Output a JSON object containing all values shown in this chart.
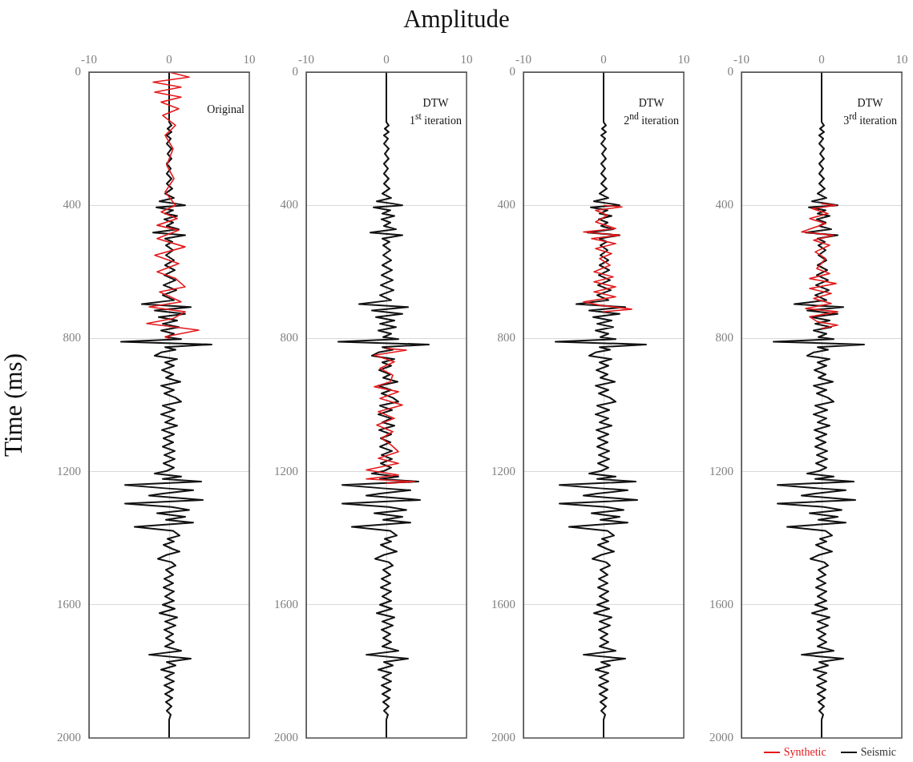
{
  "chart_data": [
    {
      "type": "line",
      "ylabel": "Time (ms)",
      "annotations": [
        "Original"
      ],
      "xlim": [
        -10,
        10
      ],
      "xticks": [
        -10,
        0,
        10
      ],
      "ylim": [
        2000,
        0
      ],
      "yticks": [
        0,
        400,
        800,
        1200,
        1600,
        2000
      ],
      "grid": true,
      "series": [
        {
          "color": "#e3191c",
          "x": [
            0,
            2.5,
            -2,
            1.5,
            -1.8,
            1.5,
            -1,
            1.2,
            -0.8,
            0.8,
            -0.5,
            0.5,
            -0.3,
            0.6,
            -0.5,
            0.8,
            -1,
            1,
            -1.5,
            1.2,
            -1.5,
            2,
            -1.8,
            1.2,
            -1.5,
            0.8,
            2,
            -1.2,
            1.5,
            -2.5,
            2,
            0.5,
            -2.8,
            3.7,
            -0.5,
            0
          ],
          "values": [
            0,
            15,
            30,
            45,
            60,
            75,
            90,
            110,
            130,
            160,
            190,
            230,
            280,
            320,
            360,
            400,
            420,
            440,
            460,
            475,
            500,
            525,
            550,
            575,
            600,
            620,
            645,
            660,
            690,
            705,
            720,
            740,
            755,
            775,
            795,
            800
          ]
        },
        {
          "color": "#111111",
          "x": [
            0,
            0,
            0.3,
            -0.2,
            0.3,
            -0.3,
            0.2,
            -0.3,
            0.3,
            -0.2,
            0.3,
            -0.3,
            0.2,
            -0.3,
            0.3,
            -0.3,
            0.4,
            -0.5,
            0.6,
            -1.2,
            0.8,
            2,
            -1.6,
            0.5,
            -0.5,
            1,
            -0.6,
            0.5,
            -0.3,
            1.2,
            -2,
            2,
            -0.5,
            0.4,
            -0.4,
            0.5,
            -0.4,
            0.6,
            -0.5,
            0.7,
            -0.6,
            0.8,
            -0.7,
            0.9,
            -0.8,
            0.6,
            -3.4,
            2.7,
            -1.8,
            2,
            -1.3,
            1,
            -0.8,
            1.2,
            -1,
            0.6,
            -0.4,
            1.5,
            -6,
            5.3,
            -0.5,
            0.8,
            -1,
            -1.8,
            1,
            -0.5,
            0.6,
            -0.9,
            0.5,
            -0.4,
            1.4,
            -1,
            0.6,
            -0.6,
            0.8,
            1.5,
            -0.8,
            0.7,
            -1,
            0.6,
            -0.5,
            1,
            -0.9,
            0.6,
            -0.7,
            0.5,
            -0.8,
            0.7,
            -0.6,
            0.7,
            -0.7,
            0.6,
            -0.3,
            -1.8,
            1.5,
            -0.8,
            4,
            -5.5,
            -0.5,
            3,
            -0.8,
            -2.5,
            4.2,
            -5.5,
            0.3,
            2.5,
            -1.5,
            2,
            -0.4,
            3,
            -4.3,
            0.5,
            1.3,
            -0.2,
            0.6,
            -0.7,
            0.4,
            1.3,
            -0.3,
            -1.4,
            0.3,
            0.8,
            -0.4,
            0.5,
            -0.6,
            0.5,
            -0.7,
            0.6,
            -0.5,
            0.6,
            -0.8,
            0.7,
            -1.2,
            1,
            -0.5,
            0.8,
            -0.6,
            0.5,
            -0.4,
            0.6,
            -0.5,
            1.5,
            -2.5,
            2.7,
            -0.3,
            0.8,
            -1,
            0.6,
            -0.5,
            0.6,
            -0.6,
            0.5,
            -0.5,
            0.4,
            -0.4,
            0.3,
            -0.3,
            0.2,
            0,
            0
          ],
          "values": [
            0,
            150,
            160,
            170,
            180,
            190,
            200,
            215,
            230,
            245,
            260,
            275,
            290,
            305,
            320,
            335,
            350,
            365,
            378,
            388,
            395,
            400,
            406,
            415,
            425,
            432,
            442,
            452,
            462,
            472,
            482,
            490,
            500,
            510,
            520,
            535,
            550,
            565,
            580,
            595,
            610,
            625,
            640,
            655,
            670,
            685,
            697,
            706,
            716,
            726,
            736,
            746,
            756,
            766,
            776,
            786,
            796,
            802,
            810,
            818,
            826,
            834,
            842,
            852,
            862,
            872,
            882,
            895,
            908,
            918,
            930,
            942,
            955,
            965,
            978,
            990,
            1002,
            1015,
            1028,
            1040,
            1052,
            1062,
            1075,
            1088,
            1100,
            1112,
            1125,
            1138,
            1150,
            1162,
            1175,
            1188,
            1198,
            1206,
            1215,
            1222,
            1230,
            1240,
            1250,
            1256,
            1266,
            1272,
            1285,
            1296,
            1306,
            1315,
            1325,
            1336,
            1345,
            1353,
            1366,
            1378,
            1392,
            1402,
            1410,
            1420,
            1432,
            1440,
            1450,
            1462,
            1472,
            1482,
            1495,
            1510,
            1522,
            1535,
            1548,
            1560,
            1575,
            1588,
            1600,
            1612,
            1625,
            1638,
            1650,
            1662,
            1675,
            1688,
            1700,
            1712,
            1725,
            1738,
            1750,
            1762,
            1772,
            1782,
            1795,
            1805,
            1818,
            1830,
            1842,
            1855,
            1868,
            1880,
            1892,
            1905,
            1918,
            1930,
            1945,
            2000
          ]
        }
      ]
    },
    {
      "type": "line",
      "title": "Amplitude",
      "annotations": [
        "DTW",
        "1$^{st}$ iteration"
      ],
      "xlim": [
        -10,
        10
      ],
      "xticks": [
        -10,
        0,
        10
      ],
      "ylim": [
        2000,
        0
      ],
      "yticks": [
        0,
        400,
        800,
        1200,
        1600,
        2000
      ],
      "grid": true,
      "series": [
        {
          "color": "#e3191c",
          "x": [
            0,
            2.5,
            -1.5,
            1,
            -0.8,
            0.8,
            0.5,
            -1.5,
            1.5,
            -0.8,
            2,
            -1,
            1,
            -1.2,
            0.8,
            -0.6,
            0.6,
            1.5,
            -1,
            1.5,
            -2.5,
            1.5,
            -2.5,
            3.5,
            0
          ],
          "values": [
            830,
            835,
            850,
            870,
            890,
            910,
            930,
            945,
            960,
            980,
            1000,
            1020,
            1040,
            1060,
            1080,
            1100,
            1120,
            1140,
            1160,
            1175,
            1195,
            1210,
            1222,
            1230,
            1235
          ]
        },
        {
          "color": "#111111",
          "x": [
            0,
            0,
            0.3,
            -0.2,
            0.3,
            -0.3,
            0.2,
            -0.3,
            0.3,
            -0.2,
            0.3,
            -0.3,
            0.2,
            -0.3,
            0.3,
            -0.3,
            0.4,
            -0.5,
            0.6,
            -1.2,
            0.8,
            2,
            -1.6,
            0.5,
            -0.5,
            1,
            -0.6,
            0.5,
            -0.3,
            1.2,
            -2,
            2,
            -0.5,
            0.4,
            -0.4,
            0.5,
            -0.4,
            0.6,
            -0.5,
            0.7,
            -0.6,
            0.8,
            -0.7,
            0.9,
            -0.8,
            0.6,
            -3.4,
            2.7,
            -1.8,
            2,
            -1.3,
            1,
            -0.8,
            1.2,
            -1,
            0.6,
            -0.4,
            1.5,
            -6,
            5.3,
            -0.5,
            0.8,
            -1,
            -1.8,
            1,
            -0.5,
            0.6,
            -0.9,
            0.5,
            -0.4,
            1.4,
            -1,
            0.6,
            -0.6,
            0.8,
            1.5,
            -0.8,
            0.7,
            -1,
            0.6,
            -0.5,
            1,
            -0.9,
            0.6,
            -0.7,
            0.5,
            -0.8,
            0.7,
            -0.6,
            0.7,
            -0.7,
            0.6,
            -0.3,
            -1.8,
            1.5,
            -0.8,
            4,
            -5.5,
            -0.5,
            3,
            -0.8,
            -2.5,
            4.2,
            -5.5,
            0.3,
            2.5,
            -1.5,
            2,
            -0.4,
            3,
            -4.3,
            0.5,
            1.3,
            -0.2,
            0.6,
            -0.7,
            0.4,
            1.3,
            -0.3,
            -1.4,
            0.3,
            0.8,
            -0.4,
            0.5,
            -0.6,
            0.5,
            -0.7,
            0.6,
            -0.5,
            0.6,
            -0.8,
            0.7,
            -1.2,
            1,
            -0.5,
            0.8,
            -0.6,
            0.5,
            -0.4,
            0.6,
            -0.5,
            1.5,
            -2.5,
            2.7,
            -0.3,
            0.8,
            -1,
            0.6,
            -0.5,
            0.6,
            -0.6,
            0.5,
            -0.5,
            0.4,
            -0.4,
            0.3,
            -0.3,
            0.2,
            0,
            0
          ],
          "values": [
            0,
            150,
            160,
            170,
            180,
            190,
            200,
            215,
            230,
            245,
            260,
            275,
            290,
            305,
            320,
            335,
            350,
            365,
            378,
            388,
            395,
            400,
            406,
            415,
            425,
            432,
            442,
            452,
            462,
            472,
            482,
            490,
            500,
            510,
            520,
            535,
            550,
            565,
            580,
            595,
            610,
            625,
            640,
            655,
            670,
            685,
            697,
            706,
            716,
            726,
            736,
            746,
            756,
            766,
            776,
            786,
            796,
            802,
            810,
            818,
            826,
            834,
            842,
            852,
            862,
            872,
            882,
            895,
            908,
            918,
            930,
            942,
            955,
            965,
            978,
            990,
            1002,
            1015,
            1028,
            1040,
            1052,
            1062,
            1075,
            1088,
            1100,
            1112,
            1125,
            1138,
            1150,
            1162,
            1175,
            1188,
            1198,
            1206,
            1215,
            1222,
            1230,
            1240,
            1250,
            1256,
            1266,
            1272,
            1285,
            1296,
            1306,
            1315,
            1325,
            1336,
            1345,
            1353,
            1366,
            1378,
            1392,
            1402,
            1410,
            1420,
            1432,
            1440,
            1450,
            1462,
            1472,
            1482,
            1495,
            1510,
            1522,
            1535,
            1548,
            1560,
            1575,
            1588,
            1600,
            1612,
            1625,
            1638,
            1650,
            1662,
            1675,
            1688,
            1700,
            1712,
            1725,
            1738,
            1750,
            1762,
            1772,
            1782,
            1795,
            1805,
            1818,
            1830,
            1842,
            1855,
            1868,
            1880,
            1892,
            1905,
            1918,
            1930,
            1945,
            2000
          ]
        }
      ]
    },
    {
      "type": "line",
      "annotations": [
        "DTW",
        "2$^{nd}$ iteration"
      ],
      "xlim": [
        -10,
        10
      ],
      "xticks": [
        -10,
        0,
        10
      ],
      "ylim": [
        2000,
        0
      ],
      "yticks": [
        0,
        400,
        800,
        1200,
        1600,
        2000
      ],
      "grid": true,
      "series": [
        {
          "color": "#e3191c",
          "x": [
            0,
            2.3,
            -1,
            0.5,
            -1,
            1.5,
            -2.5,
            2,
            -1.5,
            1.5,
            -1,
            1,
            -0.5,
            0.8,
            -1.2,
            1.2,
            -1.2,
            1.5,
            -1.2,
            1.5,
            -2.5,
            -0.5,
            3.5,
            0
          ],
          "values": [
            400,
            405,
            415,
            430,
            450,
            470,
            480,
            490,
            500,
            515,
            530,
            545,
            560,
            580,
            600,
            615,
            630,
            645,
            660,
            675,
            690,
            700,
            712,
            720
          ]
        },
        {
          "color": "#111111",
          "x": [
            0,
            0,
            0.3,
            -0.2,
            0.3,
            -0.3,
            0.2,
            -0.3,
            0.3,
            -0.2,
            0.3,
            -0.3,
            0.2,
            -0.3,
            0.3,
            -0.3,
            0.4,
            -0.5,
            0.6,
            -1.2,
            0.8,
            2,
            -1.6,
            0.5,
            -0.5,
            1,
            -0.6,
            0.5,
            -0.3,
            1.2,
            -2,
            2,
            -0.5,
            0.4,
            -0.4,
            0.5,
            -0.4,
            0.6,
            -0.5,
            0.7,
            -0.6,
            0.8,
            -0.7,
            0.9,
            -0.8,
            0.6,
            -3.4,
            2.7,
            -1.8,
            2,
            -1.3,
            1,
            -0.8,
            1.2,
            -1,
            0.6,
            -0.4,
            1.5,
            -6,
            5.3,
            -0.5,
            0.8,
            -1,
            -1.8,
            1,
            -0.5,
            0.6,
            -0.9,
            0.5,
            -0.4,
            1.4,
            -1,
            0.6,
            -0.6,
            0.8,
            1.5,
            -0.8,
            0.7,
            -1,
            0.6,
            -0.5,
            1,
            -0.9,
            0.6,
            -0.7,
            0.5,
            -0.8,
            0.7,
            -0.6,
            0.7,
            -0.7,
            0.6,
            -0.3,
            -1.8,
            1.5,
            -0.8,
            4,
            -5.5,
            -0.5,
            3,
            -0.8,
            -2.5,
            4.2,
            -5.5,
            0.3,
            2.5,
            -1.5,
            2,
            -0.4,
            3,
            -4.3,
            0.5,
            1.3,
            -0.2,
            0.6,
            -0.7,
            0.4,
            1.3,
            -0.3,
            -1.4,
            0.3,
            0.8,
            -0.4,
            0.5,
            -0.6,
            0.5,
            -0.7,
            0.6,
            -0.5,
            0.6,
            -0.8,
            0.7,
            -1.2,
            1,
            -0.5,
            0.8,
            -0.6,
            0.5,
            -0.4,
            0.6,
            -0.5,
            1.5,
            -2.5,
            2.7,
            -0.3,
            0.8,
            -1,
            0.6,
            -0.5,
            0.6,
            -0.6,
            0.5,
            -0.5,
            0.4,
            -0.4,
            0.3,
            -0.3,
            0.2,
            0,
            0
          ],
          "values": [
            0,
            150,
            160,
            170,
            180,
            190,
            200,
            215,
            230,
            245,
            260,
            275,
            290,
            305,
            320,
            335,
            350,
            365,
            378,
            388,
            395,
            400,
            406,
            415,
            425,
            432,
            442,
            452,
            462,
            472,
            482,
            490,
            500,
            510,
            520,
            535,
            550,
            565,
            580,
            595,
            610,
            625,
            640,
            655,
            670,
            685,
            697,
            706,
            716,
            726,
            736,
            746,
            756,
            766,
            776,
            786,
            796,
            802,
            810,
            818,
            826,
            834,
            842,
            852,
            862,
            872,
            882,
            895,
            908,
            918,
            930,
            942,
            955,
            965,
            978,
            990,
            1002,
            1015,
            1028,
            1040,
            1052,
            1062,
            1075,
            1088,
            1100,
            1112,
            1125,
            1138,
            1150,
            1162,
            1175,
            1188,
            1198,
            1206,
            1215,
            1222,
            1230,
            1240,
            1250,
            1256,
            1266,
            1272,
            1285,
            1296,
            1306,
            1315,
            1325,
            1336,
            1345,
            1353,
            1366,
            1378,
            1392,
            1402,
            1410,
            1420,
            1432,
            1440,
            1450,
            1462,
            1472,
            1482,
            1495,
            1510,
            1522,
            1535,
            1548,
            1560,
            1575,
            1588,
            1600,
            1612,
            1625,
            1638,
            1650,
            1662,
            1675,
            1688,
            1700,
            1712,
            1725,
            1738,
            1750,
            1762,
            1772,
            1782,
            1795,
            1805,
            1818,
            1830,
            1842,
            1855,
            1868,
            1880,
            1892,
            1905,
            1918,
            1930,
            1945,
            2000
          ]
        }
      ]
    },
    {
      "type": "line",
      "annotations": [
        "DTW",
        "3$^{rd}$ iteration"
      ],
      "xlim": [
        -10,
        10
      ],
      "xticks": [
        -10,
        0,
        10
      ],
      "ylim": [
        2000,
        0
      ],
      "yticks": [
        0,
        400,
        800,
        1200,
        1600,
        2000
      ],
      "grid": true,
      "legend": "bottom right",
      "series": [
        {
          "name": "Synthetic",
          "color": "#e3191c",
          "x": [
            0,
            1.8,
            -1.2,
            0.8,
            -1.5,
            0.5,
            -2.5,
            1.5,
            -1,
            1,
            -0.8,
            0.5,
            -0.6,
            1,
            -1.5,
            1.8,
            -1.5,
            1.2,
            -1,
            1.2,
            -2,
            2,
            -1.5,
            -0.5,
            2,
            0
          ],
          "values": [
            395,
            400,
            410,
            425,
            440,
            455,
            480,
            490,
            505,
            520,
            540,
            560,
            590,
            605,
            620,
            635,
            650,
            665,
            680,
            695,
            710,
            720,
            735,
            750,
            760,
            770
          ]
        },
        {
          "name": "Seismic",
          "color": "#111111",
          "x": [
            0,
            0,
            0.3,
            -0.2,
            0.3,
            -0.3,
            0.2,
            -0.3,
            0.3,
            -0.2,
            0.3,
            -0.3,
            0.2,
            -0.3,
            0.3,
            -0.3,
            0.4,
            -0.5,
            0.6,
            -1.2,
            0.8,
            2,
            -1.6,
            0.5,
            -0.5,
            1,
            -0.6,
            0.5,
            -0.3,
            1.2,
            -2,
            2,
            -0.5,
            0.4,
            -0.4,
            0.5,
            -0.4,
            0.6,
            -0.5,
            0.7,
            -0.6,
            0.8,
            -0.7,
            0.9,
            -0.8,
            0.6,
            -3.4,
            2.7,
            -1.8,
            2,
            -1.3,
            1,
            -0.8,
            1.2,
            -1,
            0.6,
            -0.4,
            1.5,
            -6,
            5.3,
            -0.5,
            0.8,
            -1,
            -1.8,
            1,
            -0.5,
            0.6,
            -0.9,
            0.5,
            -0.4,
            1.4,
            -1,
            0.6,
            -0.6,
            0.8,
            1.5,
            -0.8,
            0.7,
            -1,
            0.6,
            -0.5,
            1,
            -0.9,
            0.6,
            -0.7,
            0.5,
            -0.8,
            0.7,
            -0.6,
            0.7,
            -0.7,
            0.6,
            -0.3,
            -1.8,
            1.5,
            -0.8,
            4,
            -5.5,
            -0.5,
            3,
            -0.8,
            -2.5,
            4.2,
            -5.5,
            0.3,
            2.5,
            -1.5,
            2,
            -0.4,
            3,
            -4.3,
            0.5,
            1.3,
            -0.2,
            0.6,
            -0.7,
            0.4,
            1.3,
            -0.3,
            -1.4,
            0.3,
            0.8,
            -0.4,
            0.5,
            -0.6,
            0.5,
            -0.7,
            0.6,
            -0.5,
            0.6,
            -0.8,
            0.7,
            -1.2,
            1,
            -0.5,
            0.8,
            -0.6,
            0.5,
            -0.4,
            0.6,
            -0.5,
            1.5,
            -2.5,
            2.7,
            -0.3,
            0.8,
            -1,
            0.6,
            -0.5,
            0.6,
            -0.6,
            0.5,
            -0.5,
            0.4,
            -0.4,
            0.3,
            -0.3,
            0.2,
            0,
            0
          ],
          "values": [
            0,
            150,
            160,
            170,
            180,
            190,
            200,
            215,
            230,
            245,
            260,
            275,
            290,
            305,
            320,
            335,
            350,
            365,
            378,
            388,
            395,
            400,
            406,
            415,
            425,
            432,
            442,
            452,
            462,
            472,
            482,
            490,
            500,
            510,
            520,
            535,
            550,
            565,
            580,
            595,
            610,
            625,
            640,
            655,
            670,
            685,
            697,
            706,
            716,
            726,
            736,
            746,
            756,
            766,
            776,
            786,
            796,
            802,
            810,
            818,
            826,
            834,
            842,
            852,
            862,
            872,
            882,
            895,
            908,
            918,
            930,
            942,
            955,
            965,
            978,
            990,
            1002,
            1015,
            1028,
            1040,
            1052,
            1062,
            1075,
            1088,
            1100,
            1112,
            1125,
            1138,
            1150,
            1162,
            1175,
            1188,
            1198,
            1206,
            1215,
            1222,
            1230,
            1240,
            1250,
            1256,
            1266,
            1272,
            1285,
            1296,
            1306,
            1315,
            1325,
            1336,
            1345,
            1353,
            1366,
            1378,
            1392,
            1402,
            1410,
            1420,
            1432,
            1440,
            1450,
            1462,
            1472,
            1482,
            1495,
            1510,
            1522,
            1535,
            1548,
            1560,
            1575,
            1588,
            1600,
            1612,
            1625,
            1638,
            1650,
            1662,
            1675,
            1688,
            1700,
            1712,
            1725,
            1738,
            1750,
            1762,
            1772,
            1782,
            1795,
            1805,
            1818,
            1830,
            1842,
            1855,
            1868,
            1880,
            1892,
            1905,
            1918,
            1930,
            1945,
            2000
          ]
        }
      ]
    }
  ]
}
